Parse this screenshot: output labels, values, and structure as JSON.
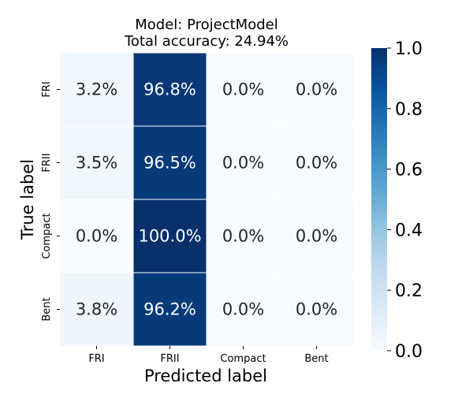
{
  "chart_data": {
    "type": "heatmap",
    "title_lines": [
      "Model: ProjectModel",
      "Total accuracy: 24.94%"
    ],
    "xlabel": "Predicted label",
    "ylabel": "True label",
    "x_categories": [
      "FRI",
      "FRII",
      "Compact",
      "Bent"
    ],
    "y_categories": [
      "FRI",
      "FRII",
      "Compact",
      "Bent"
    ],
    "values": [
      [
        0.032,
        0.968,
        0.0,
        0.0
      ],
      [
        0.035,
        0.965,
        0.0,
        0.0
      ],
      [
        0.0,
        1.0,
        0.0,
        0.0
      ],
      [
        0.038,
        0.962,
        0.0,
        0.0
      ]
    ],
    "cell_labels": [
      [
        "3.2%",
        "96.8%",
        "0.0%",
        "0.0%"
      ],
      [
        "3.5%",
        "96.5%",
        "0.0%",
        "0.0%"
      ],
      [
        "0.0%",
        "100.0%",
        "0.0%",
        "0.0%"
      ],
      [
        "3.8%",
        "96.2%",
        "0.0%",
        "0.0%"
      ]
    ],
    "colorbar": {
      "range": [
        0.0,
        1.0
      ],
      "ticks": [
        0.0,
        0.2,
        0.4,
        0.6,
        0.8,
        1.0
      ],
      "tick_labels": [
        "0.0",
        "0.2",
        "0.4",
        "0.6",
        "0.8",
        "1.0"
      ],
      "colormap": "Blues"
    },
    "colors": {
      "low": "#f7fbff",
      "high": "#08306b",
      "cell_border": "#ffffff",
      "text_dark": "#262626",
      "text_light": "#ffffff"
    }
  }
}
